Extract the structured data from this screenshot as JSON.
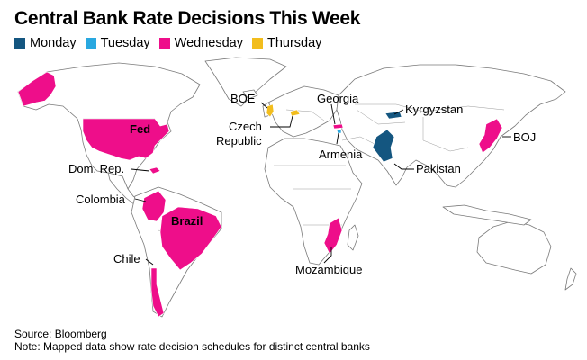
{
  "title": "Central Bank Rate Decisions This Week",
  "legend": [
    {
      "label": "Monday",
      "color": "#145680"
    },
    {
      "label": "Tuesday",
      "color": "#29a8e0"
    },
    {
      "label": "Wednesday",
      "color": "#ee0e8a"
    },
    {
      "label": "Thursday",
      "color": "#f2bd1d"
    }
  ],
  "map": {
    "type": "world-choropleth",
    "countries": [
      {
        "name": "United States",
        "label": "Fed",
        "day": "Wednesday",
        "color": "#ee0e8a"
      },
      {
        "name": "Dominican Republic",
        "label": "Dom. Rep.",
        "day": "Wednesday",
        "color": "#ee0e8a"
      },
      {
        "name": "Colombia",
        "label": "Colombia",
        "day": "Wednesday",
        "color": "#ee0e8a"
      },
      {
        "name": "Brazil",
        "label": "Brazil",
        "day": "Wednesday",
        "color": "#ee0e8a"
      },
      {
        "name": "Chile",
        "label": "Chile",
        "day": "Wednesday",
        "color": "#ee0e8a"
      },
      {
        "name": "United Kingdom",
        "label": "BOE",
        "day": "Thursday",
        "color": "#f2bd1d"
      },
      {
        "name": "Czech Republic",
        "label": "Czech\nRepublic",
        "day": "Thursday",
        "color": "#f2bd1d"
      },
      {
        "name": "Georgia",
        "label": "Georgia",
        "day": "Wednesday",
        "color": "#ee0e8a"
      },
      {
        "name": "Armenia",
        "label": "Armenia",
        "day": "Tuesday",
        "color": "#29a8e0"
      },
      {
        "name": "Kyrgyzstan",
        "label": "Kyrgyzstan",
        "day": "Monday",
        "color": "#145680"
      },
      {
        "name": "Pakistan",
        "label": "Pakistan",
        "day": "Monday",
        "color": "#145680"
      },
      {
        "name": "Japan",
        "label": "BOJ",
        "day": "Wednesday",
        "color": "#ee0e8a"
      },
      {
        "name": "Mozambique",
        "label": "Mozambique",
        "day": "Wednesday",
        "color": "#ee0e8a"
      }
    ]
  },
  "labels": {
    "fed": "Fed",
    "dom_rep": "Dom. Rep.",
    "colombia": "Colombia",
    "brazil": "Brazil",
    "chile": "Chile",
    "boe": "BOE",
    "czech_1": "Czech",
    "czech_2": "Republic",
    "georgia": "Georgia",
    "armenia": "Armenia",
    "kyrgyzstan": "Kyrgyzstan",
    "pakistan": "Pakistan",
    "boj": "BOJ",
    "mozambique": "Mozambique"
  },
  "source": "Source: Bloomberg",
  "note": "Note: Mapped data show rate decision schedules for distinct central banks"
}
